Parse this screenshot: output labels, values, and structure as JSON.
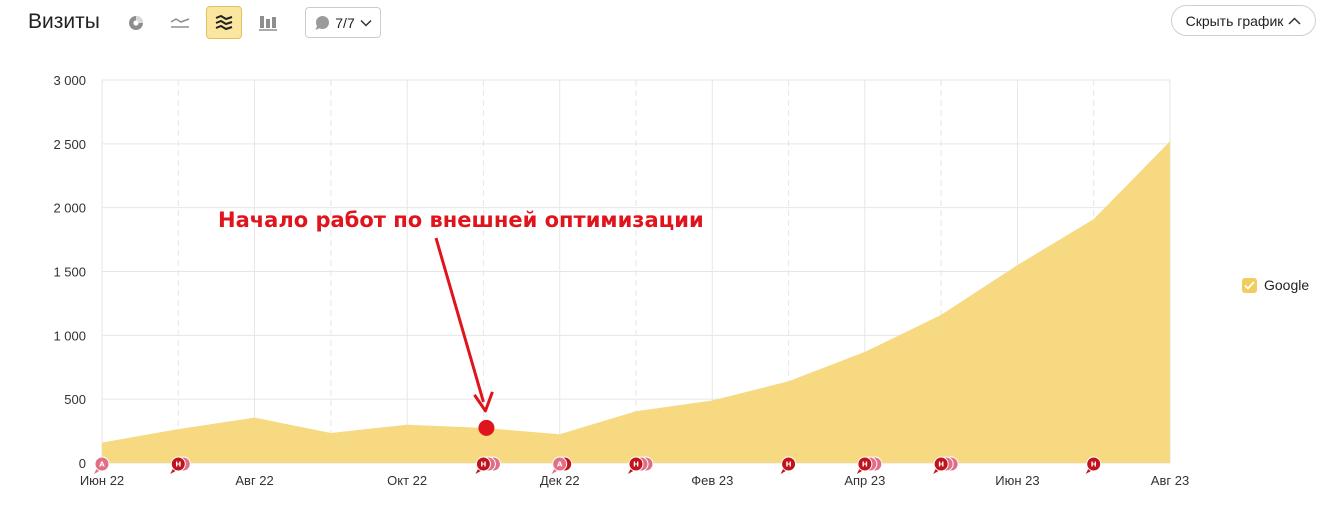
{
  "header": {
    "title": "Визиты",
    "notes_counter": "7/7",
    "hide_chart_label": "Скрыть график",
    "view_buttons": [
      {
        "icon": "pie-chart-icon",
        "active": false
      },
      {
        "icon": "line-chart-icon",
        "active": false
      },
      {
        "icon": "stacked-area-icon",
        "active": true
      },
      {
        "icon": "stacked-bar-icon",
        "active": false
      }
    ]
  },
  "colors": {
    "area": "#f6d980",
    "legend": "#f0cd5e",
    "grid": "#e6e6e6",
    "annotation": "#e0141c",
    "marker_a": "#e06f87",
    "marker_n": "#c0131c",
    "marker_n_back": "#de6f87"
  },
  "legend": [
    {
      "name": "Google",
      "checked": true
    }
  ],
  "chart_data": {
    "type": "area",
    "x_labels": [
      "Июн 22",
      "Авг 22",
      "Окт 22",
      "Дек 22",
      "Фев 23",
      "Апр 23",
      "Июн 23",
      "Авг 23"
    ],
    "x": [
      "Июн 22",
      "Июл 22",
      "Авг 22",
      "Сен 22",
      "Окт 22",
      "Ноя 22",
      "Дек 22",
      "Янв 23",
      "Фев 23",
      "Мар 23",
      "Апр 23",
      "Май 23",
      "Июн 23",
      "Июл 23",
      "Авг 23"
    ],
    "series": [
      {
        "name": "Google",
        "values": [
          160,
          265,
          355,
          235,
          300,
          275,
          225,
          405,
          490,
          640,
          870,
          1160,
          1550,
          1910,
          2520
        ]
      }
    ],
    "ylim": [
      0,
      3000
    ],
    "y_ticks": [
      "0",
      "500",
      "1 000",
      "1 500",
      "2 000",
      "2 500",
      "3 000"
    ],
    "grid": true,
    "legend_position": "right",
    "annotation": {
      "text": "Начало работ по внешней оптимизации",
      "at": "Ноя 22",
      "y": 275
    },
    "notes": [
      {
        "x": "Июн 22",
        "letter": "А",
        "count": 1
      },
      {
        "x": "Июл 22",
        "letter": "Н",
        "count": 2
      },
      {
        "x": "Ноя 22",
        "letter": "Н",
        "count": 3
      },
      {
        "x": "Дек 22",
        "letter": "А",
        "count": 2
      },
      {
        "x": "Янв 23",
        "letter": "Н",
        "count": 3
      },
      {
        "x": "Мар 23",
        "letter": "Н",
        "count": 1
      },
      {
        "x": "Апр 23",
        "letter": "Н",
        "count": 3
      },
      {
        "x": "Май 23",
        "letter": "Н",
        "count": 3
      },
      {
        "x": "Июл 23",
        "letter": "Н",
        "count": 1
      }
    ]
  }
}
